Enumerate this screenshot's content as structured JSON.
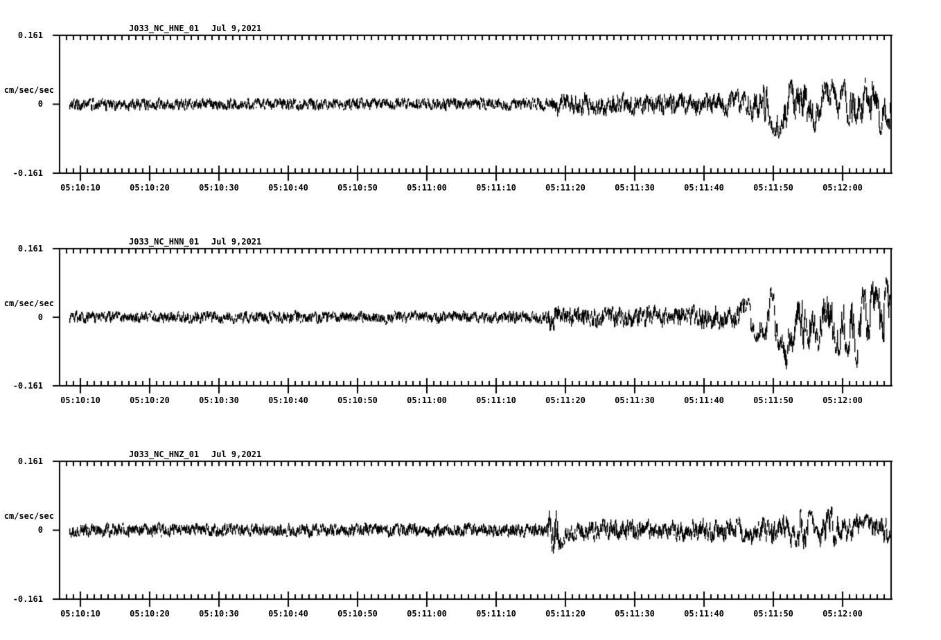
{
  "page": {
    "background": "#ffffff",
    "trace_color": "#000000"
  },
  "yaxis": {
    "max": "0.161",
    "zero": "0",
    "min": "-0.161",
    "unit": "cm/sec/sec"
  },
  "xaxis": {
    "tick_labels": [
      "05:10:10",
      "05:10:20",
      "05:10:30",
      "05:10:40",
      "05:10:50",
      "05:11:00",
      "05:11:10",
      "05:11:20",
      "05:11:30",
      "05:11:40",
      "05:11:50",
      "05:12:00"
    ],
    "major_interval_seconds": 10,
    "minor_interval_seconds": 1
  },
  "panels": [
    {
      "station": "J033_NC_HNE_01",
      "date": "Jul 9,2021"
    },
    {
      "station": "J033_NC_HNN_01",
      "date": "Jul 9,2021"
    },
    {
      "station": "J033_NC_HNZ_01",
      "date": "Jul 9,2021"
    }
  ],
  "chart_data": [
    {
      "type": "line",
      "variant": "seismogram",
      "title": "J033_NC_HNE_01   Jul 9,2021",
      "station": "J033_NC_HNE_01",
      "channel": "HNE",
      "date": "Jul 9,2021",
      "ylabel": "cm/sec/sec",
      "ylim": [
        -0.161,
        0.161
      ],
      "grid": false,
      "legend": false,
      "x_tick_labels": [
        "05:10:10",
        "05:10:20",
        "05:10:30",
        "05:10:40",
        "05:10:50",
        "05:11:00",
        "05:11:10",
        "05:11:20",
        "05:11:30",
        "05:11:40",
        "05:11:50",
        "05:12:00"
      ],
      "window_seconds": 120,
      "first_tick_offset_seconds": 3,
      "phases": {
        "p_arrival_seconds": 71,
        "s_arrival_seconds": 99
      },
      "amplitude_envelope": [
        [
          0,
          0.021
        ],
        [
          50,
          0.02
        ],
        [
          69,
          0.021
        ],
        [
          70.8,
          0.022
        ],
        [
          71.3,
          0.042
        ],
        [
          74,
          0.046
        ],
        [
          80,
          0.042
        ],
        [
          88,
          0.044
        ],
        [
          96,
          0.046
        ],
        [
          99,
          0.055
        ],
        [
          101,
          0.075
        ],
        [
          103,
          0.095
        ],
        [
          105,
          0.085
        ],
        [
          107,
          0.096
        ],
        [
          109,
          0.088
        ],
        [
          111,
          0.082
        ],
        [
          113,
          0.078
        ],
        [
          115,
          0.09
        ],
        [
          117,
          0.085
        ],
        [
          120,
          0.082
        ]
      ]
    },
    {
      "type": "line",
      "variant": "seismogram",
      "title": "J033_NC_HNN_01   Jul 9,2021",
      "station": "J033_NC_HNN_01",
      "channel": "HNN",
      "date": "Jul 9,2021",
      "ylabel": "cm/sec/sec",
      "ylim": [
        -0.161,
        0.161
      ],
      "grid": false,
      "legend": false,
      "x_tick_labels": [
        "05:10:10",
        "05:10:20",
        "05:10:30",
        "05:10:40",
        "05:10:50",
        "05:11:00",
        "05:11:10",
        "05:11:20",
        "05:11:30",
        "05:11:40",
        "05:11:50",
        "05:12:00"
      ],
      "window_seconds": 120,
      "first_tick_offset_seconds": 3,
      "phases": {
        "p_arrival_seconds": 71,
        "s_arrival_seconds": 99
      },
      "amplitude_envelope": [
        [
          0,
          0.02
        ],
        [
          69.5,
          0.02
        ],
        [
          70.3,
          0.021
        ],
        [
          70.7,
          0.075
        ],
        [
          71.5,
          0.042
        ],
        [
          78,
          0.04
        ],
        [
          88,
          0.042
        ],
        [
          97,
          0.048
        ],
        [
          99,
          0.058
        ],
        [
          101,
          0.072
        ],
        [
          103,
          0.092
        ],
        [
          104.3,
          0.11
        ],
        [
          104.8,
          0.155
        ],
        [
          105.6,
          0.1
        ],
        [
          107,
          0.11
        ],
        [
          109,
          0.1
        ],
        [
          111,
          0.115
        ],
        [
          113,
          0.108
        ],
        [
          114.8,
          0.135
        ],
        [
          116,
          0.11
        ],
        [
          118,
          0.118
        ],
        [
          120,
          0.112
        ]
      ]
    },
    {
      "type": "line",
      "variant": "seismogram",
      "title": "J033_NC_HNZ_01   Jul 9,2021",
      "station": "J033_NC_HNZ_01",
      "channel": "HNZ",
      "date": "Jul 9,2021",
      "ylabel": "cm/sec/sec",
      "ylim": [
        -0.161,
        0.161
      ],
      "grid": false,
      "legend": false,
      "x_tick_labels": [
        "05:10:10",
        "05:10:20",
        "05:10:30",
        "05:10:40",
        "05:10:50",
        "05:11:00",
        "05:11:10",
        "05:11:20",
        "05:11:30",
        "05:11:40",
        "05:11:50",
        "05:12:00"
      ],
      "window_seconds": 120,
      "first_tick_offset_seconds": 3,
      "phases": {
        "p_arrival_seconds": 70.4,
        "s_arrival_seconds": 106
      },
      "amplitude_envelope": [
        [
          0,
          0.023
        ],
        [
          69.5,
          0.023
        ],
        [
          70.2,
          0.024
        ],
        [
          70.5,
          0.118
        ],
        [
          71.4,
          0.1
        ],
        [
          72.4,
          0.06
        ],
        [
          73.6,
          0.042
        ],
        [
          85,
          0.04
        ],
        [
          95,
          0.044
        ],
        [
          100,
          0.048
        ],
        [
          104,
          0.052
        ],
        [
          106,
          0.066
        ],
        [
          107.3,
          0.082
        ],
        [
          108.6,
          0.06
        ],
        [
          110,
          0.063
        ],
        [
          111.6,
          0.08
        ],
        [
          113,
          0.058
        ],
        [
          116,
          0.054
        ],
        [
          120,
          0.055
        ]
      ]
    }
  ]
}
